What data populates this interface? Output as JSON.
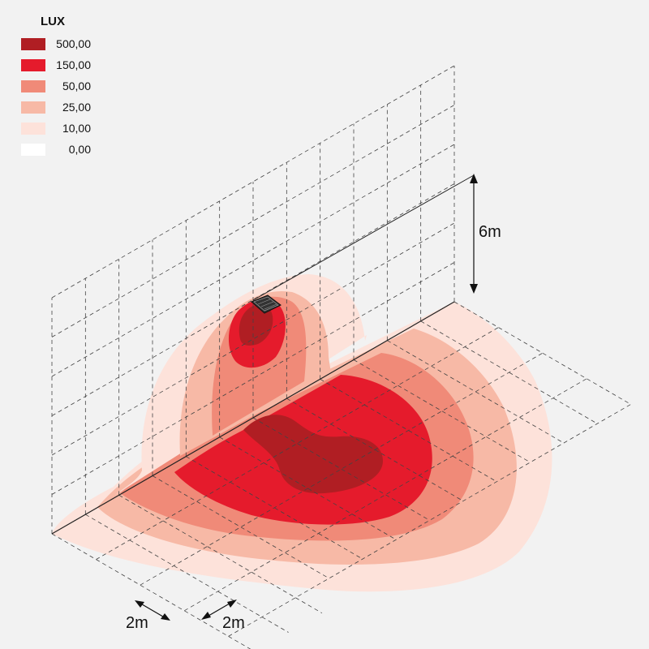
{
  "legend": {
    "title": "LUX",
    "items": [
      {
        "label": "500,00",
        "color": "#b01e23"
      },
      {
        "label": "150,00",
        "color": "#e51b2c"
      },
      {
        "label": "50,00",
        "color": "#f08a78"
      },
      {
        "label": "25,00",
        "color": "#f7b9a6"
      },
      {
        "label": "10,00",
        "color": "#fde2da"
      },
      {
        "label": "0,00",
        "color": "#ffffff"
      }
    ]
  },
  "dimensions": {
    "height": "6m",
    "grid_x": "2m",
    "grid_y": "2m"
  }
}
